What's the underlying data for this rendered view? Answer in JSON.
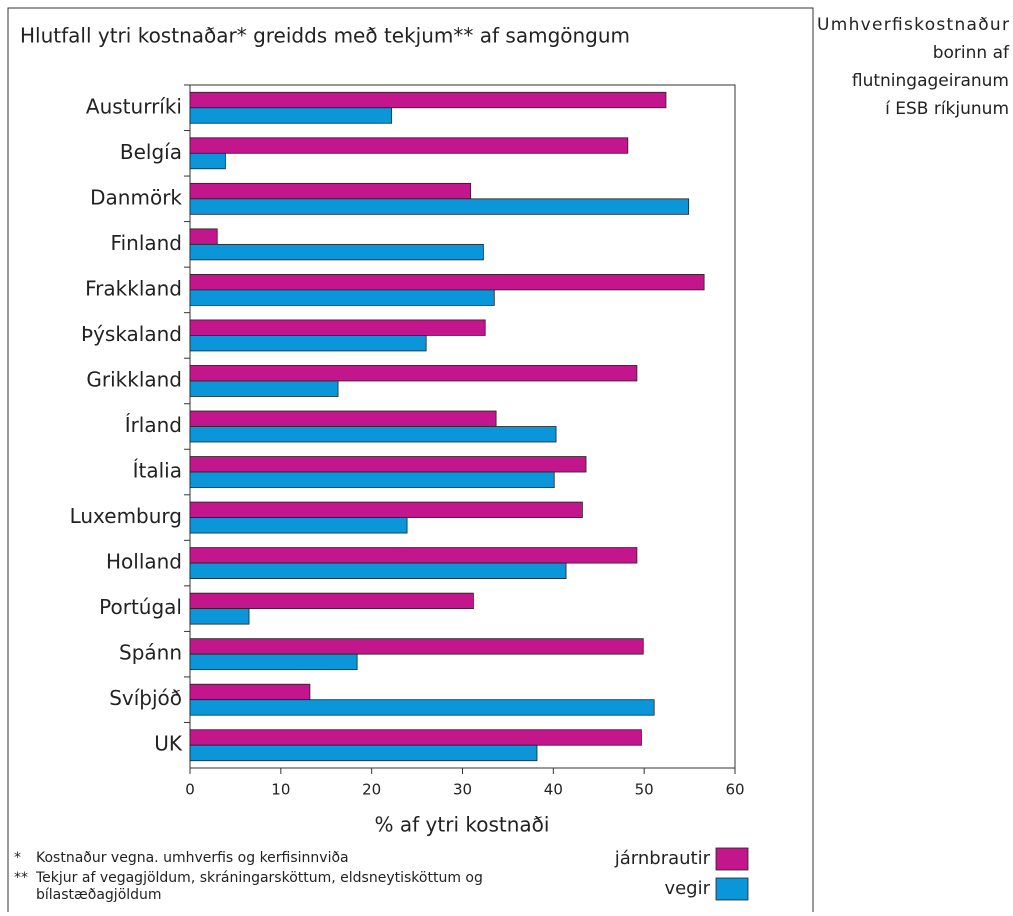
{
  "chart_data": {
    "type": "bar",
    "orientation": "horizontal",
    "title": "Hlutfall ytri kostnaðar* greidds með tekjum** af samgöngum",
    "side_title": [
      "Umhverfiskostnaður",
      "borinn af",
      "flutningageiranum",
      "í ESB ríkjunum"
    ],
    "categories": [
      "Austurríki",
      "Belgía",
      "Danmörk",
      "Finland",
      "Frakkland",
      "Þýskaland",
      "Grikkland",
      "Írland",
      "Ítalia",
      "Luxemburg",
      "Holland",
      "Portúgal",
      "Spánn",
      "Svíþjóð",
      "UK"
    ],
    "series": [
      {
        "name": "járnbrautir",
        "color": "#c4168c",
        "values": [
          52.4,
          48.2,
          30.9,
          3.0,
          56.6,
          32.5,
          49.2,
          33.7,
          43.6,
          43.2,
          49.2,
          31.2,
          49.9,
          13.2,
          49.7
        ]
      },
      {
        "name": "vegir",
        "color": "#0a96d8",
        "values": [
          22.2,
          3.9,
          54.9,
          32.3,
          33.5,
          26.0,
          16.3,
          40.3,
          40.1,
          23.9,
          41.4,
          6.5,
          18.4,
          51.1,
          38.2
        ]
      }
    ],
    "xlabel": "% af ytri kostnaði",
    "xlim": [
      0,
      60
    ],
    "xticks": [
      0,
      10,
      20,
      30,
      40,
      50,
      60
    ],
    "legend": "bottom-right",
    "notes": [
      {
        "mark": "*",
        "text": [
          "Kostnaður vegna. umhverfis og kerfisinnviða"
        ]
      },
      {
        "mark": "**",
        "text": [
          "Tekjur af vegagjöldum, skráningarsköttum, eldsneytisköttum og",
          "bílastæðagjöldum"
        ]
      }
    ]
  }
}
